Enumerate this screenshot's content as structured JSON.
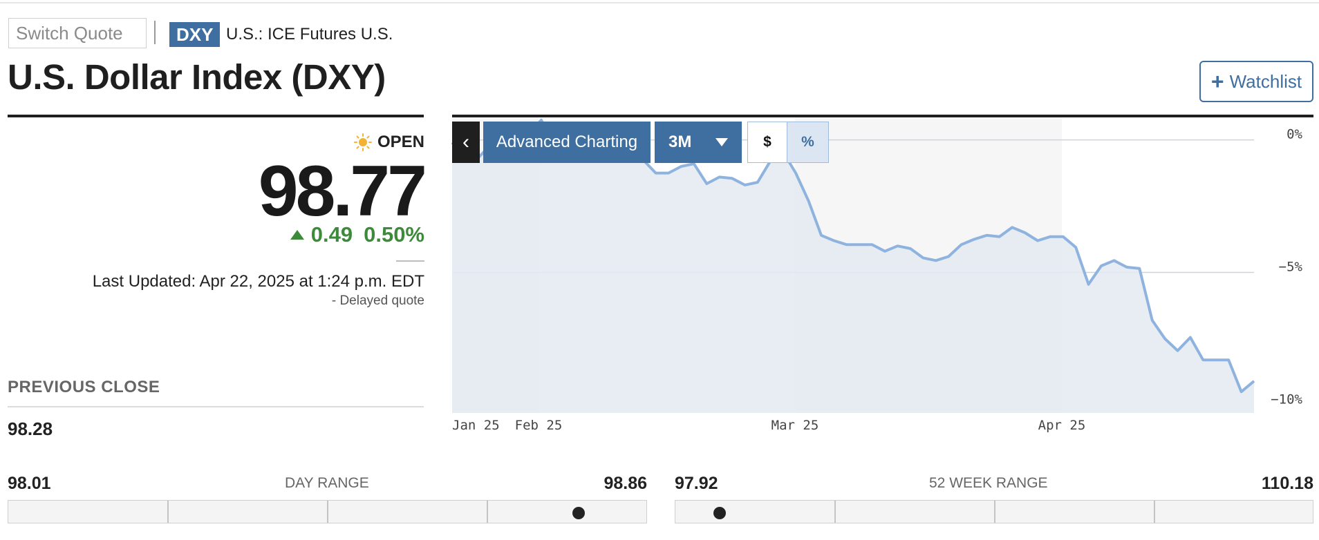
{
  "header": {
    "switch_quote_placeholder": "Switch Quote",
    "ticker": "DXY",
    "exchange": "U.S.: ICE Futures U.S.",
    "title": "U.S. Dollar Index (DXY)",
    "watchlist_label": "Watchlist",
    "watchlist_icon": "plus-icon"
  },
  "quote": {
    "status_icon": "sun-icon",
    "status": "OPEN",
    "price": "98.77",
    "change": "0.49",
    "change_pct": "0.50%",
    "change_direction": "up",
    "last_updated": "Last Updated: Apr 22, 2025 at 1:24 p.m. EDT",
    "delayed": "-  Delayed quote",
    "previous_close_label": "PREVIOUS CLOSE",
    "previous_close": "98.28"
  },
  "chart_controls": {
    "collapse_label": "‹",
    "advanced_label": "Advanced Charting",
    "range_label": "3M",
    "dollar_label": "$",
    "percent_label": "%",
    "selected_mode": "%"
  },
  "ranges": {
    "day": {
      "low": "98.01",
      "label": "DAY RANGE",
      "high": "98.86",
      "current": 98.77
    },
    "week52": {
      "low": "97.92",
      "label": "52 WEEK RANGE",
      "high": "110.18",
      "current": 98.77
    }
  },
  "colors": {
    "accent": "#3f6fa1",
    "positive": "#3d8a3a",
    "line": "#8fb3df",
    "area": "#e4eaf2"
  },
  "chart_data": {
    "type": "area",
    "x_ticks": [
      "Jan 25",
      "Feb 25",
      "Mar 25",
      "Apr 25"
    ],
    "y_ticks": [
      "0%",
      "−5%",
      "−10%"
    ],
    "ylim": [
      -10.3,
      0.85
    ],
    "grid": "horizontal",
    "series": [
      {
        "values": [
          -0.1,
          -0.6,
          -0.7,
          -0.2,
          -0.1,
          -0.25,
          0.2,
          0.75,
          -0.1,
          -0.5,
          -0.4,
          -0.1,
          0.15,
          -0.15,
          -0.2,
          -0.75,
          -1.25,
          -1.25,
          -1.0,
          -0.9,
          -1.65,
          -1.4,
          -1.45,
          -1.7,
          -1.6,
          -0.8,
          -0.45,
          -1.25,
          -2.3,
          -3.6,
          -3.8,
          -3.95,
          -3.95,
          -3.95,
          -4.2,
          -4.0,
          -4.1,
          -4.45,
          -4.55,
          -4.4,
          -3.95,
          -3.75,
          -3.6,
          -3.65,
          -3.3,
          -3.5,
          -3.8,
          -3.65,
          -3.65,
          -4.05,
          -5.45,
          -4.75,
          -4.55,
          -4.8,
          -4.85,
          -6.8,
          -7.5,
          -7.95,
          -7.45,
          -8.3,
          -8.3,
          -8.3,
          -9.5,
          -9.1
        ]
      }
    ]
  }
}
